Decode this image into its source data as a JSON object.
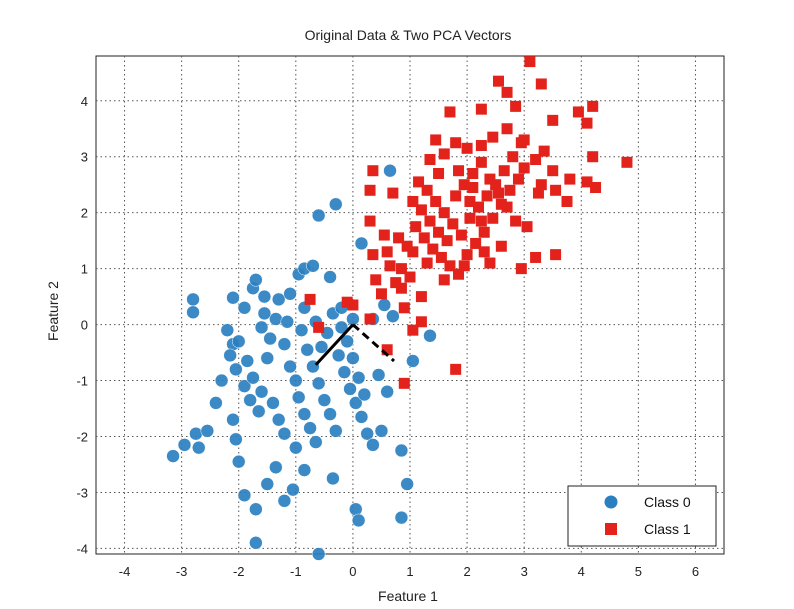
{
  "chart_data": {
    "type": "scatter",
    "title": "Original Data & Two PCA Vectors",
    "xlabel": "Feature 1",
    "ylabel": "Feature 2",
    "xlim": [
      -4.5,
      6.5
    ],
    "ylim": [
      -4.1,
      4.8
    ],
    "xticks": [
      -4,
      -3,
      -2,
      -1,
      0,
      1,
      2,
      3,
      4,
      5,
      6
    ],
    "yticks": [
      -4,
      -3,
      -2,
      -1,
      0,
      1,
      2,
      3,
      4
    ],
    "grid": true,
    "legend_position": "bottom-right",
    "colors": {
      "class0": "#2a7fc0",
      "class1": "#e3221b",
      "vector": "#000000"
    },
    "series": [
      {
        "name": "Class 0",
        "marker": "circle",
        "points": [
          [
            -2.8,
            0.45
          ],
          [
            -2.8,
            0.22
          ],
          [
            -2.1,
            0.48
          ],
          [
            -1.9,
            0.3
          ],
          [
            -1.75,
            0.65
          ],
          [
            -1.7,
            0.8
          ],
          [
            -1.55,
            0.5
          ],
          [
            -1.3,
            0.45
          ],
          [
            -1.1,
            0.55
          ],
          [
            -0.95,
            0.9
          ],
          [
            -0.85,
            1.0
          ],
          [
            -0.7,
            1.05
          ],
          [
            -0.6,
            1.95
          ],
          [
            -0.4,
            0.85
          ],
          [
            -0.3,
            2.15
          ],
          [
            0.15,
            1.45
          ],
          [
            0.65,
            2.75
          ],
          [
            -3.15,
            -2.35
          ],
          [
            -2.95,
            -2.15
          ],
          [
            -2.75,
            -1.95
          ],
          [
            -2.55,
            -1.9
          ],
          [
            -2.7,
            -2.2
          ],
          [
            -2.4,
            -1.4
          ],
          [
            -2.3,
            -1.0
          ],
          [
            -2.1,
            -1.7
          ],
          [
            -2.05,
            -2.05
          ],
          [
            -2.0,
            -2.45
          ],
          [
            -1.9,
            -3.05
          ],
          [
            -1.7,
            -3.3
          ],
          [
            -1.7,
            -3.9
          ],
          [
            -1.5,
            -2.85
          ],
          [
            -1.35,
            -2.55
          ],
          [
            -1.2,
            -3.15
          ],
          [
            -1.05,
            -2.95
          ],
          [
            -0.85,
            -2.6
          ],
          [
            -0.6,
            -4.1
          ],
          [
            -0.35,
            -2.75
          ],
          [
            0.05,
            -3.3
          ],
          [
            0.1,
            -3.5
          ],
          [
            0.85,
            -3.45
          ],
          [
            0.95,
            -2.85
          ],
          [
            0.85,
            -2.25
          ],
          [
            1.05,
            -0.65
          ],
          [
            1.35,
            -0.2
          ],
          [
            -2.2,
            -0.1
          ],
          [
            -2.1,
            -0.35
          ],
          [
            -2.15,
            -0.55
          ],
          [
            -2.05,
            -0.8
          ],
          [
            -1.9,
            -1.1
          ],
          [
            -1.8,
            -1.35
          ],
          [
            -1.65,
            -1.55
          ],
          [
            -1.5,
            -0.6
          ],
          [
            -1.45,
            -0.25
          ],
          [
            -1.35,
            0.1
          ],
          [
            -1.2,
            -0.35
          ],
          [
            -1.1,
            -0.75
          ],
          [
            -1.0,
            -1.0
          ],
          [
            -0.95,
            -1.3
          ],
          [
            -0.85,
            -1.6
          ],
          [
            -0.75,
            -1.85
          ],
          [
            -0.65,
            -2.1
          ],
          [
            -0.55,
            -0.4
          ],
          [
            -0.45,
            -0.15
          ],
          [
            -0.35,
            0.2
          ],
          [
            -0.25,
            -0.55
          ],
          [
            -0.15,
            -0.85
          ],
          [
            -0.05,
            -1.15
          ],
          [
            0.05,
            -1.4
          ],
          [
            0.15,
            -1.65
          ],
          [
            0.25,
            -1.95
          ],
          [
            0.35,
            -2.15
          ],
          [
            0.5,
            -1.9
          ],
          [
            0.6,
            -1.2
          ],
          [
            0.45,
            -0.9
          ],
          [
            0.35,
            0.1
          ],
          [
            0.55,
            0.35
          ],
          [
            0.7,
            0.15
          ],
          [
            -2.0,
            -0.3
          ],
          [
            -1.85,
            -0.65
          ],
          [
            -1.75,
            -0.95
          ],
          [
            -1.6,
            -1.2
          ],
          [
            -1.4,
            -1.4
          ],
          [
            -1.3,
            -1.7
          ],
          [
            -1.2,
            -1.95
          ],
          [
            -1.0,
            -2.2
          ],
          [
            -0.9,
            -0.1
          ],
          [
            -0.8,
            -0.45
          ],
          [
            -0.7,
            -0.75
          ],
          [
            -0.6,
            -1.05
          ],
          [
            -0.5,
            -1.35
          ],
          [
            -0.4,
            -1.6
          ],
          [
            -0.3,
            -1.9
          ],
          [
            -0.2,
            -0.05
          ],
          [
            -0.1,
            -0.3
          ],
          [
            0.0,
            -0.6
          ],
          [
            0.1,
            -0.95
          ],
          [
            0.2,
            -1.25
          ],
          [
            -1.55,
            0.2
          ],
          [
            -1.6,
            -0.05
          ],
          [
            -1.15,
            0.05
          ],
          [
            -0.85,
            0.3
          ],
          [
            -0.65,
            0.05
          ],
          [
            -0.2,
            0.3
          ],
          [
            0.0,
            0.1
          ]
        ]
      },
      {
        "name": "Class 1",
        "marker": "square",
        "points": [
          [
            3.1,
            4.7
          ],
          [
            2.55,
            4.35
          ],
          [
            2.7,
            4.15
          ],
          [
            2.85,
            3.9
          ],
          [
            3.3,
            4.3
          ],
          [
            1.7,
            3.8
          ],
          [
            2.25,
            3.85
          ],
          [
            3.5,
            3.65
          ],
          [
            3.95,
            3.8
          ],
          [
            4.2,
            3.9
          ],
          [
            4.1,
            3.6
          ],
          [
            1.45,
            3.3
          ],
          [
            1.8,
            3.25
          ],
          [
            2.25,
            3.2
          ],
          [
            3.35,
            3.1
          ],
          [
            4.2,
            3.0
          ],
          [
            4.8,
            2.9
          ],
          [
            0.35,
            2.75
          ],
          [
            0.3,
            2.4
          ],
          [
            0.7,
            2.35
          ],
          [
            3.8,
            2.6
          ],
          [
            4.1,
            2.55
          ],
          [
            4.25,
            2.45
          ],
          [
            3.3,
            2.5
          ],
          [
            3.75,
            2.2
          ],
          [
            0.3,
            1.85
          ],
          [
            0.8,
            1.55
          ],
          [
            1.05,
            1.3
          ],
          [
            3.05,
            1.75
          ],
          [
            3.2,
            1.2
          ],
          [
            3.55,
            1.25
          ],
          [
            2.95,
            1.0
          ],
          [
            0.35,
            1.25
          ],
          [
            0.65,
            1.05
          ],
          [
            0.4,
            0.8
          ],
          [
            0.85,
            0.65
          ],
          [
            1.2,
            0.5
          ],
          [
            -0.75,
            0.45
          ],
          [
            -0.1,
            0.4
          ],
          [
            0.0,
            0.35
          ],
          [
            0.9,
            0.3
          ],
          [
            1.2,
            0.05
          ],
          [
            1.05,
            -0.1
          ],
          [
            0.3,
            0.1
          ],
          [
            -0.6,
            -0.05
          ],
          [
            0.6,
            -0.45
          ],
          [
            1.8,
            -0.8
          ],
          [
            0.9,
            -1.05
          ],
          [
            1.05,
            2.2
          ],
          [
            1.2,
            2.05
          ],
          [
            1.35,
            1.85
          ],
          [
            1.5,
            1.65
          ],
          [
            1.65,
            1.5
          ],
          [
            1.8,
            2.3
          ],
          [
            1.95,
            2.5
          ],
          [
            2.1,
            2.7
          ],
          [
            2.25,
            2.9
          ],
          [
            2.4,
            2.6
          ],
          [
            2.55,
            2.35
          ],
          [
            2.7,
            2.1
          ],
          [
            2.85,
            1.85
          ],
          [
            1.1,
            1.75
          ],
          [
            1.25,
            1.55
          ],
          [
            1.4,
            1.35
          ],
          [
            1.55,
            1.2
          ],
          [
            1.7,
            1.05
          ],
          [
            1.85,
            0.9
          ],
          [
            2.0,
            1.25
          ],
          [
            2.15,
            1.45
          ],
          [
            2.3,
            1.65
          ],
          [
            2.45,
            1.9
          ],
          [
            2.6,
            2.15
          ],
          [
            2.75,
            2.4
          ],
          [
            2.9,
            2.6
          ],
          [
            3.0,
            2.8
          ],
          [
            1.15,
            2.55
          ],
          [
            1.3,
            2.4
          ],
          [
            1.45,
            2.2
          ],
          [
            1.6,
            2.0
          ],
          [
            1.75,
            1.8
          ],
          [
            1.9,
            1.6
          ],
          [
            2.05,
            1.9
          ],
          [
            2.2,
            2.1
          ],
          [
            2.35,
            2.3
          ],
          [
            2.5,
            2.5
          ],
          [
            2.65,
            2.75
          ],
          [
            2.8,
            3.0
          ],
          [
            2.95,
            3.25
          ],
          [
            0.95,
            1.4
          ],
          [
            0.85,
            1.0
          ],
          [
            0.75,
            0.75
          ],
          [
            0.6,
            1.3
          ],
          [
            0.55,
            1.6
          ],
          [
            0.5,
            0.55
          ],
          [
            1.0,
            0.85
          ],
          [
            1.3,
            1.1
          ],
          [
            1.6,
            0.8
          ],
          [
            1.95,
            1.05
          ],
          [
            2.4,
            1.1
          ],
          [
            2.6,
            1.4
          ],
          [
            2.3,
            1.3
          ],
          [
            1.5,
            2.7
          ],
          [
            1.35,
            2.95
          ],
          [
            1.6,
            3.05
          ],
          [
            2.0,
            3.15
          ],
          [
            2.45,
            3.35
          ],
          [
            2.7,
            3.5
          ],
          [
            3.0,
            3.3
          ],
          [
            3.2,
            2.95
          ],
          [
            3.5,
            2.75
          ],
          [
            3.55,
            2.4
          ],
          [
            3.25,
            2.35
          ],
          [
            1.85,
            2.75
          ],
          [
            2.1,
            2.45
          ],
          [
            2.25,
            1.85
          ],
          [
            2.05,
            2.2
          ]
        ]
      }
    ],
    "vectors": [
      {
        "style": "solid",
        "from": [
          0.0,
          0.0
        ],
        "to": [
          -0.65,
          -0.72
        ]
      },
      {
        "style": "dashed",
        "from": [
          0.0,
          0.0
        ],
        "to": [
          0.72,
          -0.65
        ]
      }
    ]
  }
}
